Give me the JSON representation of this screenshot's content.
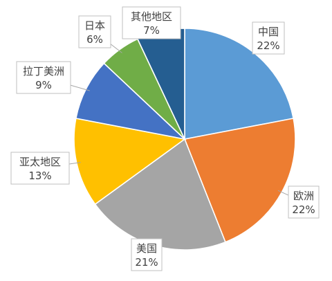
{
  "chart_data": {
    "type": "pie",
    "title": "",
    "categories": [
      "中国",
      "欧洲",
      "美国",
      "亚太地区",
      "拉丁美洲",
      "日本",
      "其他地区"
    ],
    "values": [
      22,
      22,
      21,
      13,
      9,
      6,
      7
    ],
    "value_labels": [
      "22%",
      "22%",
      "21%",
      "13%",
      "9%",
      "6%",
      "7%"
    ],
    "unit": "%",
    "start_angle_deg": 0,
    "direction": "clockwise",
    "legend": "none",
    "colors": [
      "#5b9bd5",
      "#ed7d31",
      "#a5a5a5",
      "#ffc000",
      "#4472c4",
      "#70ad47",
      "#255e91"
    ]
  }
}
